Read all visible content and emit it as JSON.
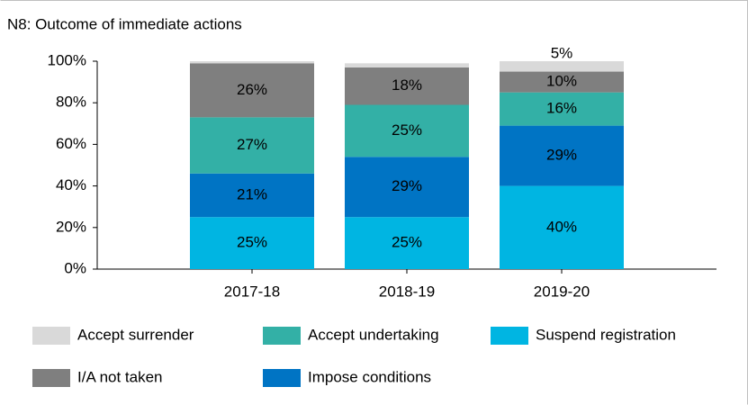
{
  "chart_data": {
    "type": "stacked_bar",
    "title": "N8: Outcome of immediate actions",
    "categories": [
      "2017-18",
      "2018-19",
      "2019-20"
    ],
    "series": [
      {
        "name": "Suspend registration",
        "color": "#00b5e2",
        "values": [
          25,
          25,
          40
        ],
        "value_labels": [
          "25%",
          "25%",
          "40%"
        ]
      },
      {
        "name": "Impose conditions",
        "color": "#0074c4",
        "values": [
          21,
          29,
          29
        ],
        "value_labels": [
          "21%",
          "29%",
          "29%"
        ]
      },
      {
        "name": "Accept undertaking",
        "color": "#33b0a6",
        "values": [
          27,
          25,
          16
        ],
        "value_labels": [
          "27%",
          "25%",
          "16%"
        ]
      },
      {
        "name": "I/A not taken",
        "color": "#7f7f7f",
        "values": [
          26,
          18,
          10
        ],
        "value_labels": [
          "26%",
          "18%",
          "10%"
        ]
      },
      {
        "name": "Accept surrender",
        "color": "#d9d9d9",
        "values": [
          1,
          2,
          5
        ],
        "value_labels": [
          null,
          null,
          "5%"
        ]
      }
    ],
    "ylim": [
      0,
      100
    ],
    "yticks": [
      {
        "value": 0,
        "label": "0%"
      },
      {
        "value": 20,
        "label": "20%"
      },
      {
        "value": 40,
        "label": "40%"
      },
      {
        "value": 60,
        "label": "60%"
      },
      {
        "value": 80,
        "label": "80%"
      },
      {
        "value": 100,
        "label": "100%"
      }
    ],
    "grid": false
  }
}
